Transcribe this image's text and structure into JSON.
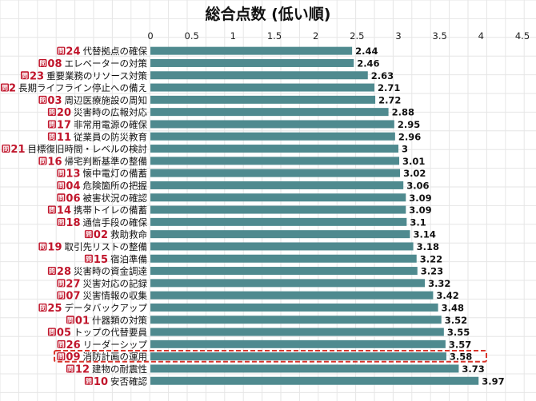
{
  "chart_data": {
    "type": "bar",
    "orientation": "horizontal",
    "title": "総合点数 (低い順)",
    "xlim": [
      0,
      4.5
    ],
    "ticks": [
      "0",
      "0.5",
      "1",
      "1.5",
      "2",
      "2.5",
      "3",
      "3.5",
      "4",
      "4.5"
    ],
    "grid": true,
    "question_marker": "問",
    "bar_color": "#4f8a8f",
    "highlight_color": "#d9342b",
    "highlight_index": 25,
    "categories": [
      {
        "num": "24",
        "label": "代替拠点の確保"
      },
      {
        "num": "08",
        "label": "エレベーターの対策"
      },
      {
        "num": "23",
        "label": "重要業務のリソース対策"
      },
      {
        "num": "22",
        "label": "長期ライフライン停止への備え"
      },
      {
        "num": "03",
        "label": "周辺医療施設の周知"
      },
      {
        "num": "20",
        "label": "災害時の広報対応"
      },
      {
        "num": "17",
        "label": "非常用電源の確保"
      },
      {
        "num": "11",
        "label": "従業員の防災教育"
      },
      {
        "num": "21",
        "label": "目標復旧時間・レベルの検討"
      },
      {
        "num": "16",
        "label": "帰宅判断基準の整備"
      },
      {
        "num": "13",
        "label": "懐中電灯の備蓄"
      },
      {
        "num": "04",
        "label": "危険箇所の把握"
      },
      {
        "num": "06",
        "label": "被害状況の確認"
      },
      {
        "num": "14",
        "label": "携帯トイレの備蓄"
      },
      {
        "num": "18",
        "label": "通信手段の確保"
      },
      {
        "num": "02",
        "label": "救助救命"
      },
      {
        "num": "19",
        "label": "取引先リストの整備"
      },
      {
        "num": "15",
        "label": "宿泊準備"
      },
      {
        "num": "28",
        "label": "災害時の資金調達"
      },
      {
        "num": "27",
        "label": "災害対応の記録"
      },
      {
        "num": "07",
        "label": "災害情報の収集"
      },
      {
        "num": "25",
        "label": "データバックアップ"
      },
      {
        "num": "01",
        "label": "什器類の対策"
      },
      {
        "num": "05",
        "label": "トップの代替要員"
      },
      {
        "num": "26",
        "label": "リーダーシップ"
      },
      {
        "num": "09",
        "label": "消防計画の運用"
      },
      {
        "num": "12",
        "label": "建物の耐震性"
      },
      {
        "num": "10",
        "label": "安否確認"
      }
    ],
    "values": [
      2.44,
      2.46,
      2.63,
      2.71,
      2.72,
      2.88,
      2.95,
      2.96,
      3,
      3.01,
      3.02,
      3.06,
      3.09,
      3.09,
      3.1,
      3.14,
      3.18,
      3.22,
      3.23,
      3.32,
      3.42,
      3.48,
      3.52,
      3.55,
      3.57,
      3.58,
      3.73,
      3.97
    ],
    "value_labels": [
      "2.44",
      "2.46",
      "2.63",
      "2.71",
      "2.72",
      "2.88",
      "2.95",
      "2.96",
      "3",
      "3.01",
      "3.02",
      "3.06",
      "3.09",
      "3.09",
      "3.1",
      "3.14",
      "3.18",
      "3.22",
      "3.23",
      "3.32",
      "3.42",
      "3.48",
      "3.52",
      "3.55",
      "3.57",
      "3.58",
      "3.73",
      "3.97"
    ]
  }
}
